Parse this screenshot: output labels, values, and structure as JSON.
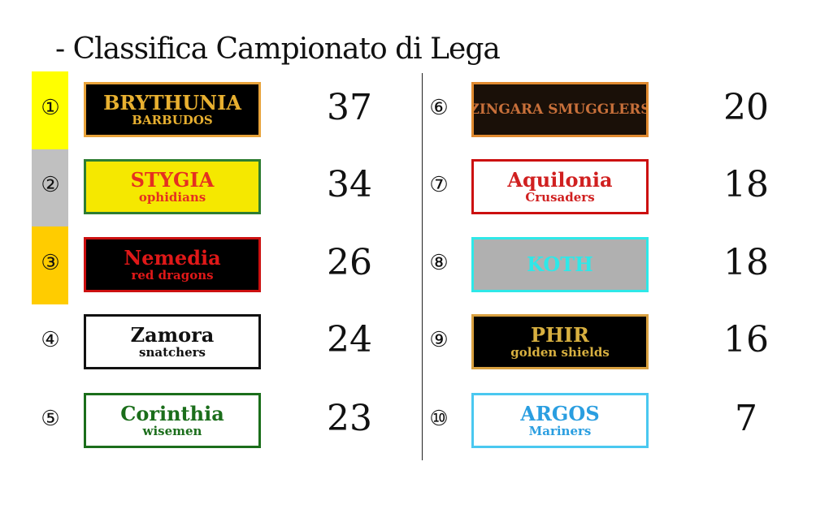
{
  "title": "- Classifica Campionato di Lega",
  "highlight_colors": {
    "first": "#ffff00",
    "second": "#c0c0c0",
    "third": "#ffcc00"
  },
  "teams": [
    {
      "rank": "①",
      "name": "BRYTHUNIA",
      "sub": "BARBUDOS",
      "points": "37",
      "bg": "#000000",
      "border": "#e8a33a",
      "fg": "#e8b030",
      "fg2": "#e8b030"
    },
    {
      "rank": "②",
      "name": "STYGIA",
      "sub": "ophidians",
      "points": "34",
      "bg": "#f5e800",
      "border": "#2e7d32",
      "fg": "#e53020",
      "fg2": "#e53020"
    },
    {
      "rank": "③",
      "name": "Nemedia",
      "sub": "red dragons",
      "points": "26",
      "bg": "#000000",
      "border": "#cc1010",
      "fg": "#e01818",
      "fg2": "#e01818"
    },
    {
      "rank": "④",
      "name": "Zamora",
      "sub": "snatchers",
      "points": "24",
      "bg": "#ffffff",
      "border": "#111111",
      "fg": "#111111",
      "fg2": "#111111"
    },
    {
      "rank": "⑤",
      "name": "Corinthia",
      "sub": "wisemen",
      "points": "23",
      "bg": "#ffffff",
      "border": "#1b6e1b",
      "fg": "#1b6e1b",
      "fg2": "#1b6e1b"
    },
    {
      "rank": "⑥",
      "name": "ZINGARA SMUGGLERS",
      "sub": "",
      "points": "20",
      "bg": "#1a1008",
      "border": "#e08a30",
      "fg": "#c8703a",
      "fg2": "#c8703a"
    },
    {
      "rank": "⑦",
      "name": "Aquilonia",
      "sub": "Crusaders",
      "points": "18",
      "bg": "#ffffff",
      "border": "#cc1010",
      "fg": "#d02020",
      "fg2": "#d02020"
    },
    {
      "rank": "⑧",
      "name": "KOTH",
      "sub": "",
      "points": "18",
      "bg": "#b0b0b0",
      "border": "#2ee8e8",
      "fg": "#2ee8e8",
      "fg2": "#2ee8e8"
    },
    {
      "rank": "⑨",
      "name": "PHIR",
      "sub": "golden shields",
      "points": "16",
      "bg": "#000000",
      "border": "#d8a040",
      "fg": "#d8b040",
      "fg2": "#d8b040"
    },
    {
      "rank": "⑩",
      "name": "ARGOS",
      "sub": "Mariners",
      "points": "7",
      "bg": "#ffffff",
      "border": "#4ac8f0",
      "fg": "#2a9ee0",
      "fg2": "#2a9ee0"
    }
  ]
}
